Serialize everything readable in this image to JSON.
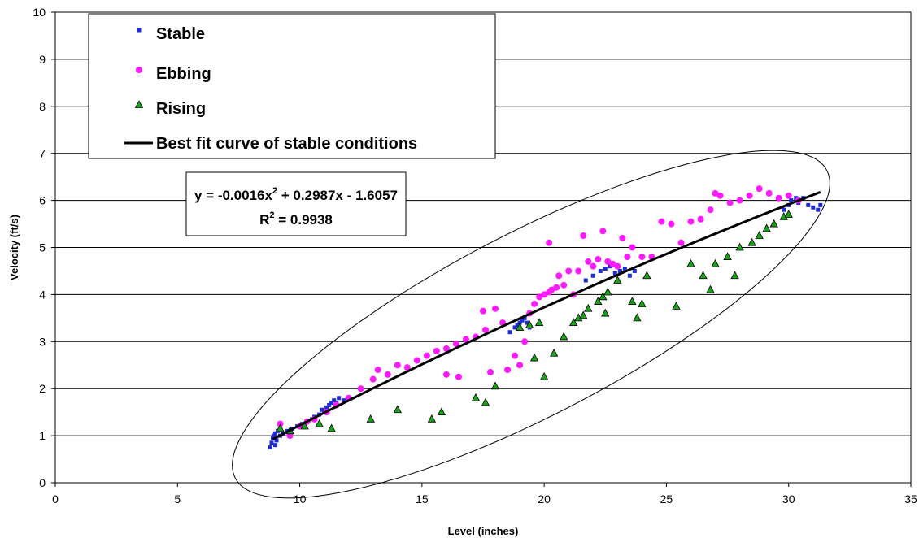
{
  "chart_data": {
    "type": "scatter",
    "title": "",
    "xlabel": "Level (inches)",
    "ylabel": "Velocity (ft/s)",
    "xlim": [
      0,
      35
    ],
    "ylim": [
      0,
      10
    ],
    "xticks": [
      "0",
      "5",
      "10",
      "15",
      "20",
      "25",
      "30",
      "35"
    ],
    "yticks": [
      "0",
      "1",
      "2",
      "3",
      "4",
      "5",
      "6",
      "7",
      "8",
      "9",
      "10"
    ],
    "grid": "horizontal",
    "legend_position": "top-left",
    "legend": [
      {
        "label": "Stable",
        "marker": "square-small",
        "color": "#1f2bd6"
      },
      {
        "label": "Ebbing",
        "marker": "circle",
        "color": "#ff19ff"
      },
      {
        "label": "Rising",
        "marker": "triangle",
        "color": "#1aa31a"
      },
      {
        "label": "Best fit curve of stable conditions",
        "marker": "line",
        "color": "#000000"
      }
    ],
    "equation": {
      "line1_main": "y = -0.0016x",
      "line1_sup": "2",
      "line1_tail": " + 0.2987x - 1.6057",
      "line2_main": "R",
      "line2_sup": "2",
      "line2_tail": " = 0.9938"
    },
    "fit": {
      "a": -0.0016,
      "b": 0.2987,
      "c": -1.6057,
      "x_range": [
        8.9,
        31.3
      ]
    },
    "series": [
      {
        "name": "Stable",
        "color": "#1f2bd6",
        "marker": "square-small",
        "points": [
          [
            8.8,
            0.75
          ],
          [
            8.85,
            0.85
          ],
          [
            8.9,
            0.95
          ],
          [
            8.95,
            1.0
          ],
          [
            9.0,
            0.8
          ],
          [
            9.0,
            1.05
          ],
          [
            9.05,
            0.9
          ],
          [
            9.1,
            1.1
          ],
          [
            9.2,
            1.0
          ],
          [
            9.3,
            1.05
          ],
          [
            9.5,
            1.1
          ],
          [
            9.7,
            1.15
          ],
          [
            9.9,
            1.2
          ],
          [
            10.1,
            1.25
          ],
          [
            10.3,
            1.3
          ],
          [
            10.5,
            1.35
          ],
          [
            10.6,
            1.4
          ],
          [
            10.8,
            1.45
          ],
          [
            10.9,
            1.55
          ],
          [
            11.0,
            1.5
          ],
          [
            11.1,
            1.6
          ],
          [
            11.2,
            1.65
          ],
          [
            11.3,
            1.7
          ],
          [
            11.4,
            1.75
          ],
          [
            11.5,
            1.7
          ],
          [
            11.6,
            1.8
          ],
          [
            11.8,
            1.75
          ],
          [
            18.6,
            3.2
          ],
          [
            18.8,
            3.3
          ],
          [
            18.9,
            3.35
          ],
          [
            19.0,
            3.4
          ],
          [
            19.1,
            3.45
          ],
          [
            19.2,
            3.5
          ],
          [
            19.3,
            3.4
          ],
          [
            19.4,
            3.3
          ],
          [
            21.7,
            4.3
          ],
          [
            22.0,
            4.4
          ],
          [
            22.3,
            4.5
          ],
          [
            22.5,
            4.55
          ],
          [
            22.7,
            4.6
          ],
          [
            22.9,
            4.45
          ],
          [
            23.1,
            4.5
          ],
          [
            23.3,
            4.55
          ],
          [
            23.5,
            4.4
          ],
          [
            23.7,
            4.5
          ],
          [
            29.8,
            5.8
          ],
          [
            30.0,
            5.9
          ],
          [
            30.1,
            6.0
          ],
          [
            30.3,
            6.05
          ],
          [
            30.4,
            5.95
          ],
          [
            30.6,
            6.05
          ],
          [
            30.8,
            5.9
          ],
          [
            31.0,
            5.85
          ],
          [
            31.2,
            5.8
          ],
          [
            31.3,
            5.9
          ]
        ]
      },
      {
        "name": "Ebbing",
        "color": "#ff19ff",
        "marker": "circle",
        "points": [
          [
            9.2,
            1.25
          ],
          [
            9.6,
            1.0
          ],
          [
            10.0,
            1.2
          ],
          [
            10.3,
            1.3
          ],
          [
            10.6,
            1.35
          ],
          [
            11.1,
            1.5
          ],
          [
            11.5,
            1.65
          ],
          [
            12.0,
            1.8
          ],
          [
            12.5,
            2.0
          ],
          [
            13.0,
            2.2
          ],
          [
            13.2,
            2.4
          ],
          [
            13.6,
            2.3
          ],
          [
            14.0,
            2.5
          ],
          [
            14.4,
            2.45
          ],
          [
            14.8,
            2.6
          ],
          [
            15.2,
            2.7
          ],
          [
            15.6,
            2.8
          ],
          [
            16.0,
            2.85
          ],
          [
            16.4,
            2.95
          ],
          [
            16.8,
            3.05
          ],
          [
            16.0,
            2.3
          ],
          [
            16.5,
            2.25
          ],
          [
            17.2,
            3.1
          ],
          [
            17.6,
            3.25
          ],
          [
            17.5,
            3.65
          ],
          [
            18.0,
            3.7
          ],
          [
            17.8,
            2.35
          ],
          [
            18.3,
            3.4
          ],
          [
            18.5,
            2.4
          ],
          [
            18.8,
            2.7
          ],
          [
            19.0,
            2.5
          ],
          [
            19.2,
            3.0
          ],
          [
            19.4,
            3.6
          ],
          [
            19.6,
            3.8
          ],
          [
            19.8,
            3.95
          ],
          [
            20.0,
            4.0
          ],
          [
            20.2,
            4.05
          ],
          [
            20.3,
            4.1
          ],
          [
            20.5,
            4.15
          ],
          [
            20.2,
            5.1
          ],
          [
            20.6,
            4.4
          ],
          [
            20.8,
            4.2
          ],
          [
            21.0,
            4.5
          ],
          [
            21.2,
            4.0
          ],
          [
            21.4,
            4.5
          ],
          [
            21.6,
            5.25
          ],
          [
            21.8,
            4.7
          ],
          [
            22.0,
            4.6
          ],
          [
            22.2,
            4.75
          ],
          [
            22.4,
            5.35
          ],
          [
            22.6,
            4.7
          ],
          [
            22.8,
            4.65
          ],
          [
            23.0,
            4.6
          ],
          [
            23.2,
            5.2
          ],
          [
            23.4,
            4.8
          ],
          [
            23.6,
            5.0
          ],
          [
            24.0,
            4.8
          ],
          [
            24.4,
            4.8
          ],
          [
            24.8,
            5.55
          ],
          [
            25.2,
            5.5
          ],
          [
            25.6,
            5.1
          ],
          [
            26.0,
            5.55
          ],
          [
            26.4,
            5.6
          ],
          [
            26.8,
            5.8
          ],
          [
            27.0,
            6.15
          ],
          [
            27.2,
            6.1
          ],
          [
            27.6,
            5.95
          ],
          [
            28.0,
            6.0
          ],
          [
            28.4,
            6.1
          ],
          [
            28.8,
            6.25
          ],
          [
            29.2,
            6.15
          ],
          [
            29.6,
            6.05
          ],
          [
            30.0,
            6.1
          ],
          [
            30.4,
            6.0
          ]
        ]
      },
      {
        "name": "Rising",
        "color": "#1aa31a",
        "marker": "triangle",
        "points": [
          [
            9.2,
            1.15
          ],
          [
            9.6,
            1.1
          ],
          [
            10.2,
            1.2
          ],
          [
            10.8,
            1.25
          ],
          [
            11.3,
            1.15
          ],
          [
            12.9,
            1.35
          ],
          [
            14.0,
            1.55
          ],
          [
            15.4,
            1.35
          ],
          [
            15.8,
            1.5
          ],
          [
            17.2,
            1.8
          ],
          [
            17.6,
            1.7
          ],
          [
            18.0,
            2.05
          ],
          [
            19.0,
            3.3
          ],
          [
            19.4,
            3.35
          ],
          [
            19.6,
            2.65
          ],
          [
            19.8,
            3.4
          ],
          [
            20.0,
            2.25
          ],
          [
            20.4,
            2.75
          ],
          [
            20.8,
            3.1
          ],
          [
            21.2,
            3.4
          ],
          [
            21.4,
            3.5
          ],
          [
            21.6,
            3.55
          ],
          [
            21.8,
            3.7
          ],
          [
            22.2,
            3.85
          ],
          [
            22.4,
            3.95
          ],
          [
            22.6,
            4.05
          ],
          [
            22.5,
            3.6
          ],
          [
            23.0,
            4.3
          ],
          [
            23.6,
            3.85
          ],
          [
            23.8,
            3.5
          ],
          [
            24.0,
            3.8
          ],
          [
            24.2,
            4.4
          ],
          [
            25.4,
            3.75
          ],
          [
            26.0,
            4.65
          ],
          [
            26.5,
            4.4
          ],
          [
            26.8,
            4.1
          ],
          [
            27.0,
            4.65
          ],
          [
            27.5,
            4.8
          ],
          [
            27.8,
            4.4
          ],
          [
            28.0,
            5.0
          ],
          [
            28.5,
            5.1
          ],
          [
            28.8,
            5.25
          ],
          [
            29.1,
            5.4
          ],
          [
            29.4,
            5.5
          ],
          [
            29.8,
            5.65
          ],
          [
            30.0,
            5.7
          ]
        ]
      }
    ]
  }
}
